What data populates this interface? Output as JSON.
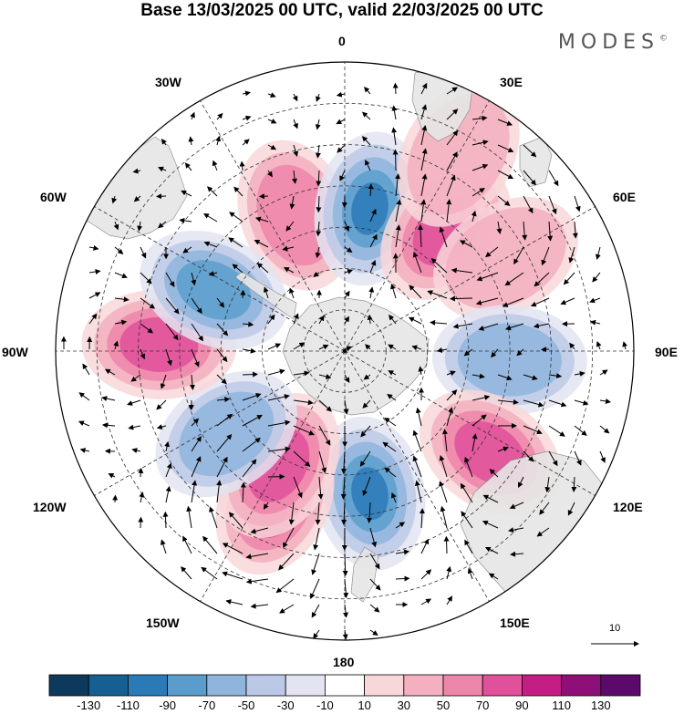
{
  "header": {
    "title": "Base 13/03/2025 00 UTC, valid 22/03/2025 00 UTC",
    "brand": "MODES"
  },
  "map": {
    "projection": "south-polar-stereographic",
    "longitude_labels": [
      "0",
      "30E",
      "60E",
      "90E",
      "120E",
      "150E",
      "180",
      "150W",
      "120W",
      "90W",
      "60W",
      "30W"
    ],
    "land_color": "#e6e6e6",
    "vector_reference": "10",
    "anomaly_centers": [
      {
        "lon": -20,
        "lat": -55,
        "value": 60
      },
      {
        "lon": 10,
        "lat": -55,
        "value": -90
      },
      {
        "lon": 40,
        "lat": -52,
        "value": 70
      },
      {
        "lon": 60,
        "lat": -45,
        "value": 40
      },
      {
        "lon": 93,
        "lat": -50,
        "value": -50
      },
      {
        "lon": 125,
        "lat": -47,
        "value": 80
      },
      {
        "lon": 170,
        "lat": -55,
        "value": -100
      },
      {
        "lon": -155,
        "lat": -50,
        "value": 100
      },
      {
        "lon": -150,
        "lat": -58,
        "value": 70
      },
      {
        "lon": -125,
        "lat": -55,
        "value": -60
      },
      {
        "lon": -88,
        "lat": -45,
        "value": 70
      },
      {
        "lon": -65,
        "lat": -55,
        "value": -70
      },
      {
        "lon": 30,
        "lat": -35,
        "value": 30
      }
    ]
  },
  "colorbar": {
    "bounds": [
      -130,
      -110,
      -90,
      -70,
      -50,
      -30,
      -10,
      10,
      30,
      50,
      70,
      90,
      110,
      130
    ],
    "tick_labels": [
      "-130",
      "-110",
      "-90",
      "-70",
      "-50",
      "-30",
      "-10",
      "10",
      "30",
      "50",
      "70",
      "90",
      "110",
      "130"
    ],
    "colors": [
      "#0d3a5c",
      "#155f93",
      "#2b7ab8",
      "#5a9dcd",
      "#8fb5dd",
      "#bcc9e6",
      "#e2e4f1",
      "#ffffff",
      "#f8d7d9",
      "#f4afc0",
      "#ee85aa",
      "#e1509a",
      "#c41d84",
      "#8f0f79",
      "#5b0a6b"
    ]
  }
}
